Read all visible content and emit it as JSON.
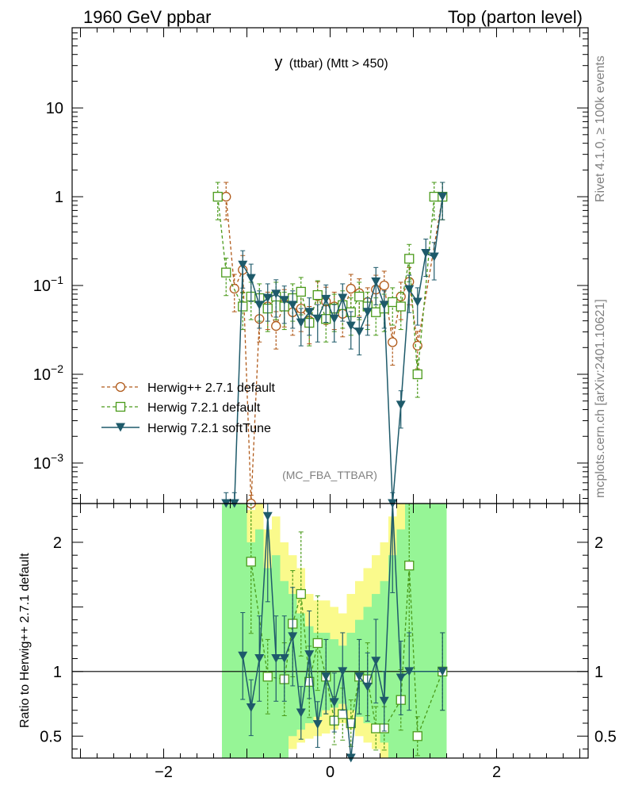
{
  "header": {
    "left": "1960 GeV ppbar",
    "right": "Top (parton level)"
  },
  "side_labels": {
    "rivet": "Rivet 4.1.0, ≥ 100k events",
    "mcplots": "mcplots.cern.ch [arXiv:2401.10621]"
  },
  "colors": {
    "herwigpp": "#b05a1a",
    "herwig721": "#4a9a1a",
    "softtune": "#1e5a6a",
    "band_yellow": "#fafa8c",
    "band_green": "#96f596"
  },
  "chart_data": [
    {
      "type": "line",
      "panel": "main",
      "title": "y",
      "title_suffix": "(ttbar) (Mtt > 450)",
      "watermark": "(MC_FBA_TTBAR)",
      "xlabel": "",
      "ylabel": "",
      "yscale": "log",
      "xlim": [
        -3.1,
        3.1
      ],
      "ylim": [
        0.00035,
        80
      ],
      "xticks": [
        -2,
        0,
        2
      ],
      "yticks": [
        {
          "value": 10,
          "base": "10",
          "exp": ""
        },
        {
          "value": 1,
          "base": "1",
          "exp": ""
        },
        {
          "value": 0.1,
          "base": "10",
          "exp": "−1"
        },
        {
          "value": 0.01,
          "base": "10",
          "exp": "−2"
        },
        {
          "value": 0.001,
          "base": "10",
          "exp": "−3"
        }
      ],
      "legend": [
        "Herwig++ 2.7.1 default",
        "Herwig 7.2.1 default",
        "Herwig 7.2.1 softTune"
      ],
      "series": [
        {
          "name": "Herwig++ 2.7.1 default",
          "style": "dashed-open-circle",
          "x": [
            -1.25,
            -1.15,
            -1.05,
            -0.95,
            -0.85,
            -0.75,
            -0.65,
            -0.55,
            -0.45,
            -0.35,
            -0.25,
            -0.15,
            -0.05,
            0.05,
            0.15,
            0.25,
            0.35,
            0.45,
            0.55,
            0.65,
            0.75,
            0.85,
            0.95,
            1.05,
            1.35
          ],
          "y": [
            1.0,
            0.092,
            0.15,
            0.0003,
            0.042,
            0.058,
            0.035,
            0.062,
            0.05,
            0.055,
            0.04,
            0.076,
            0.066,
            0.058,
            0.048,
            0.092,
            0.082,
            0.065,
            0.09,
            0.1,
            0.023,
            0.075,
            0.11,
            0.021,
            1.0
          ]
        },
        {
          "name": "Herwig 7.2.1 default",
          "style": "dashed-open-square",
          "x": [
            -1.35,
            -1.25,
            -1.05,
            -0.95,
            -0.85,
            -0.75,
            -0.65,
            -0.55,
            -0.45,
            -0.35,
            -0.25,
            -0.15,
            -0.05,
            0.05,
            0.15,
            0.25,
            0.35,
            0.45,
            0.55,
            0.65,
            0.75,
            0.85,
            0.95,
            1.05,
            1.25,
            1.35
          ],
          "y": [
            1.0,
            0.14,
            0.058,
            0.075,
            0.072,
            0.055,
            0.075,
            0.058,
            0.072,
            0.085,
            0.038,
            0.078,
            0.042,
            0.055,
            0.06,
            0.05,
            0.075,
            0.058,
            0.05,
            0.055,
            0.065,
            0.058,
            0.2,
            0.01,
            1.0,
            1.0
          ]
        },
        {
          "name": "Herwig 7.2.1 softTune",
          "style": "solid-filled-triangle",
          "x": [
            -1.25,
            -1.15,
            -1.05,
            -0.95,
            -0.85,
            -0.75,
            -0.65,
            -0.55,
            -0.45,
            -0.35,
            -0.25,
            -0.15,
            -0.05,
            0.05,
            0.15,
            0.25,
            0.35,
            0.45,
            0.55,
            0.65,
            0.75,
            0.85,
            0.95,
            1.05,
            1.15,
            1.25,
            1.35
          ],
          "y": [
            0.00032,
            0.00032,
            0.17,
            0.12,
            0.06,
            0.072,
            0.08,
            0.068,
            0.06,
            0.038,
            0.05,
            0.042,
            0.07,
            0.042,
            0.072,
            0.035,
            0.03,
            0.05,
            0.11,
            0.06,
            0.00032,
            0.0045,
            0.09,
            0.065,
            0.23,
            0.21,
            1.0
          ]
        }
      ]
    },
    {
      "type": "line",
      "panel": "ratio",
      "xlabel": "",
      "ylabel": "Ratio to Herwig++ 2.7.1 default",
      "xlim": [
        -3.1,
        3.1
      ],
      "ylim": [
        0.33,
        2.3
      ],
      "xticks": [
        -2,
        0,
        2
      ],
      "xticklabels": [
        "−2",
        "0",
        "2"
      ],
      "yticks": [
        0.5,
        1,
        2
      ],
      "yticklabels": [
        "0.5",
        "1",
        "2"
      ],
      "reference_line": 1,
      "band": {
        "x_edges": [
          -1.3,
          -1.2,
          -1.1,
          -1.0,
          -0.9,
          -0.8,
          -0.7,
          -0.6,
          -0.5,
          -0.4,
          -0.3,
          -0.2,
          -0.1,
          0.0,
          0.1,
          0.2,
          0.3,
          0.4,
          0.5,
          0.6,
          0.7,
          0.8,
          0.9,
          1.0,
          1.1,
          1.3,
          1.4
        ],
        "yellow_low": [
          0.33,
          0.33,
          0.33,
          0.33,
          0.33,
          0.33,
          0.33,
          0.33,
          0.4,
          0.45,
          0.48,
          0.5,
          0.52,
          0.55,
          0.6,
          0.55,
          0.5,
          0.45,
          0.4,
          0.33,
          0.33,
          0.33,
          0.33,
          0.33,
          0.33,
          0.33
        ],
        "yellow_high": [
          2.3,
          2.3,
          2.3,
          2.25,
          2.3,
          2.1,
          2.2,
          2.0,
          1.9,
          1.8,
          1.6,
          1.55,
          1.55,
          1.5,
          1.45,
          1.6,
          1.7,
          1.8,
          1.9,
          2.0,
          2.2,
          2.3,
          2.3,
          2.3,
          2.3,
          2.3
        ],
        "green_low": [
          0.33,
          0.33,
          0.33,
          0.33,
          0.33,
          0.33,
          0.33,
          0.33,
          0.5,
          0.55,
          0.6,
          0.65,
          0.7,
          0.72,
          0.75,
          0.7,
          0.65,
          0.6,
          0.55,
          0.45,
          0.33,
          0.33,
          0.33,
          0.33,
          0.33,
          0.33
        ],
        "green_high": [
          2.3,
          2.3,
          2.3,
          2.0,
          2.1,
          1.8,
          1.9,
          1.7,
          1.6,
          1.45,
          1.35,
          1.3,
          1.3,
          1.25,
          1.2,
          1.3,
          1.4,
          1.5,
          1.6,
          1.7,
          1.9,
          2.1,
          2.3,
          2.3,
          2.3,
          2.3
        ]
      },
      "series": [
        {
          "name": "Herwig 7.2.1 default",
          "style": "dashed-open-square",
          "x": [
            -0.95,
            -0.75,
            -0.55,
            -0.45,
            -0.35,
            -0.25,
            -0.15,
            -0.05,
            0.05,
            0.15,
            0.25,
            0.35,
            0.45,
            0.55,
            0.65,
            0.85,
            0.95,
            1.05,
            1.35
          ],
          "y": [
            1.85,
            0.96,
            0.94,
            1.37,
            1.6,
            0.92,
            1.22,
            0.96,
            0.62,
            0.67,
            0.6,
            0.96,
            0.94,
            0.56,
            0.56,
            0.78,
            1.82,
            0.5,
            1.0
          ]
        },
        {
          "name": "Herwig 7.2.1 softTune",
          "style": "solid-filled-triangle",
          "x": [
            -1.05,
            -0.95,
            -0.85,
            -0.75,
            -0.65,
            -0.55,
            -0.45,
            -0.35,
            -0.25,
            -0.15,
            -0.05,
            0.05,
            0.15,
            0.25,
            0.35,
            0.45,
            0.55,
            0.65,
            0.75,
            0.85,
            0.95,
            1.35
          ],
          "y": [
            1.12,
            0.72,
            1.1,
            2.2,
            1.1,
            1.1,
            1.27,
            0.68,
            1.13,
            0.59,
            0.96,
            0.76,
            1.0,
            0.25,
            0.96,
            0.88,
            1.08,
            0.77,
            2.3,
            0.95,
            1.0,
            1.0
          ]
        }
      ]
    }
  ]
}
